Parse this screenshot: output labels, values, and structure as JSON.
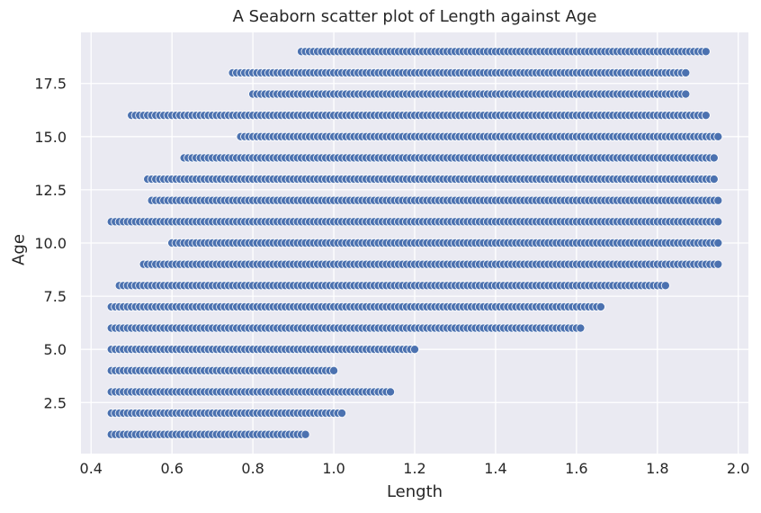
{
  "chart_data": {
    "type": "scatter",
    "title": "A Seaborn scatter plot of Length against Age",
    "xlabel": "Length",
    "ylabel": "Age",
    "xlim": [
      0.375,
      2.025
    ],
    "ylim": [
      0.1,
      19.9
    ],
    "xticks": [
      "0.4",
      "0.6",
      "0.8",
      "1.0",
      "1.2",
      "1.4",
      "1.6",
      "1.8",
      "2.0"
    ],
    "yticks": [
      "2.5",
      "5.0",
      "7.5",
      "10.0",
      "12.5",
      "15.0",
      "17.5"
    ],
    "grid": true,
    "background": "#eaeaf2",
    "grid_color": "#ffffff",
    "point_color": "#4c72b0",
    "point_edge_color": "#ffffff",
    "point_ranges": [
      {
        "age": 1,
        "x_min": 0.45,
        "x_max": 0.93,
        "step": 0.01
      },
      {
        "age": 2,
        "x_min": 0.45,
        "x_max": 1.02,
        "step": 0.01
      },
      {
        "age": 3,
        "x_min": 0.45,
        "x_max": 1.14,
        "step": 0.01
      },
      {
        "age": 4,
        "x_min": 0.45,
        "x_max": 1.0,
        "step": 0.01
      },
      {
        "age": 5,
        "x_min": 0.45,
        "x_max": 1.2,
        "step": 0.01
      },
      {
        "age": 6,
        "x_min": 0.45,
        "x_max": 1.61,
        "step": 0.01
      },
      {
        "age": 7,
        "x_min": 0.45,
        "x_max": 1.66,
        "step": 0.01
      },
      {
        "age": 8,
        "x_min": 0.47,
        "x_max": 1.82,
        "step": 0.01
      },
      {
        "age": 9,
        "x_min": 0.53,
        "x_max": 1.95,
        "step": 0.01
      },
      {
        "age": 10,
        "x_min": 0.6,
        "x_max": 1.95,
        "step": 0.01
      },
      {
        "age": 11,
        "x_min": 0.45,
        "x_max": 1.95,
        "step": 0.01
      },
      {
        "age": 12,
        "x_min": 0.55,
        "x_max": 1.95,
        "step": 0.01
      },
      {
        "age": 13,
        "x_min": 0.54,
        "x_max": 1.94,
        "step": 0.01
      },
      {
        "age": 14,
        "x_min": 0.63,
        "x_max": 1.94,
        "step": 0.01
      },
      {
        "age": 15,
        "x_min": 0.77,
        "x_max": 1.95,
        "step": 0.01
      },
      {
        "age": 16,
        "x_min": 0.5,
        "x_max": 1.92,
        "step": 0.01
      },
      {
        "age": 17,
        "x_min": 0.8,
        "x_max": 1.87,
        "step": 0.01
      },
      {
        "age": 18,
        "x_min": 0.75,
        "x_max": 1.87,
        "step": 0.01
      },
      {
        "age": 19,
        "x_min": 0.92,
        "x_max": 1.92,
        "step": 0.01
      }
    ]
  }
}
